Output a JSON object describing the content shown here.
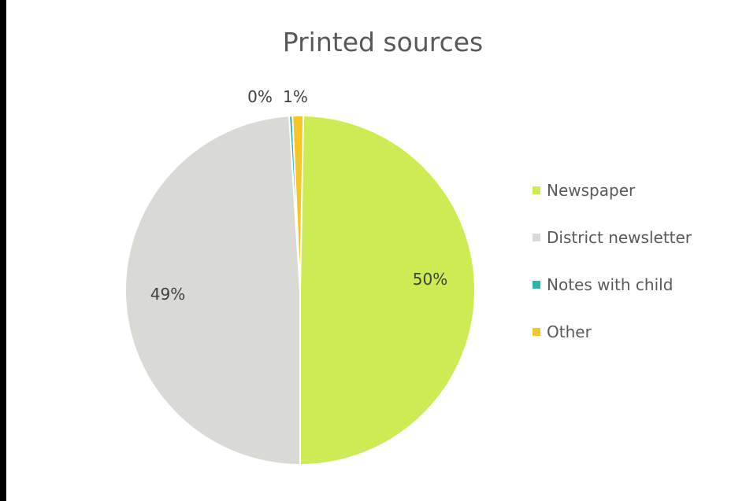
{
  "chart_data": {
    "type": "pie",
    "title": "Printed sources",
    "slices": [
      {
        "name": "Newspaper",
        "value": 50,
        "label": "50%",
        "color": "#cdeb52"
      },
      {
        "name": "District newsletter",
        "value": 49,
        "label": "49%",
        "color": "#d9d9d6"
      },
      {
        "name": "Notes with child",
        "value": 0,
        "label": "0%",
        "color": "#2ab7a9"
      },
      {
        "name": "Other",
        "value": 1,
        "label": "1%",
        "color": "#f7c624"
      }
    ],
    "legend_position": "right"
  }
}
